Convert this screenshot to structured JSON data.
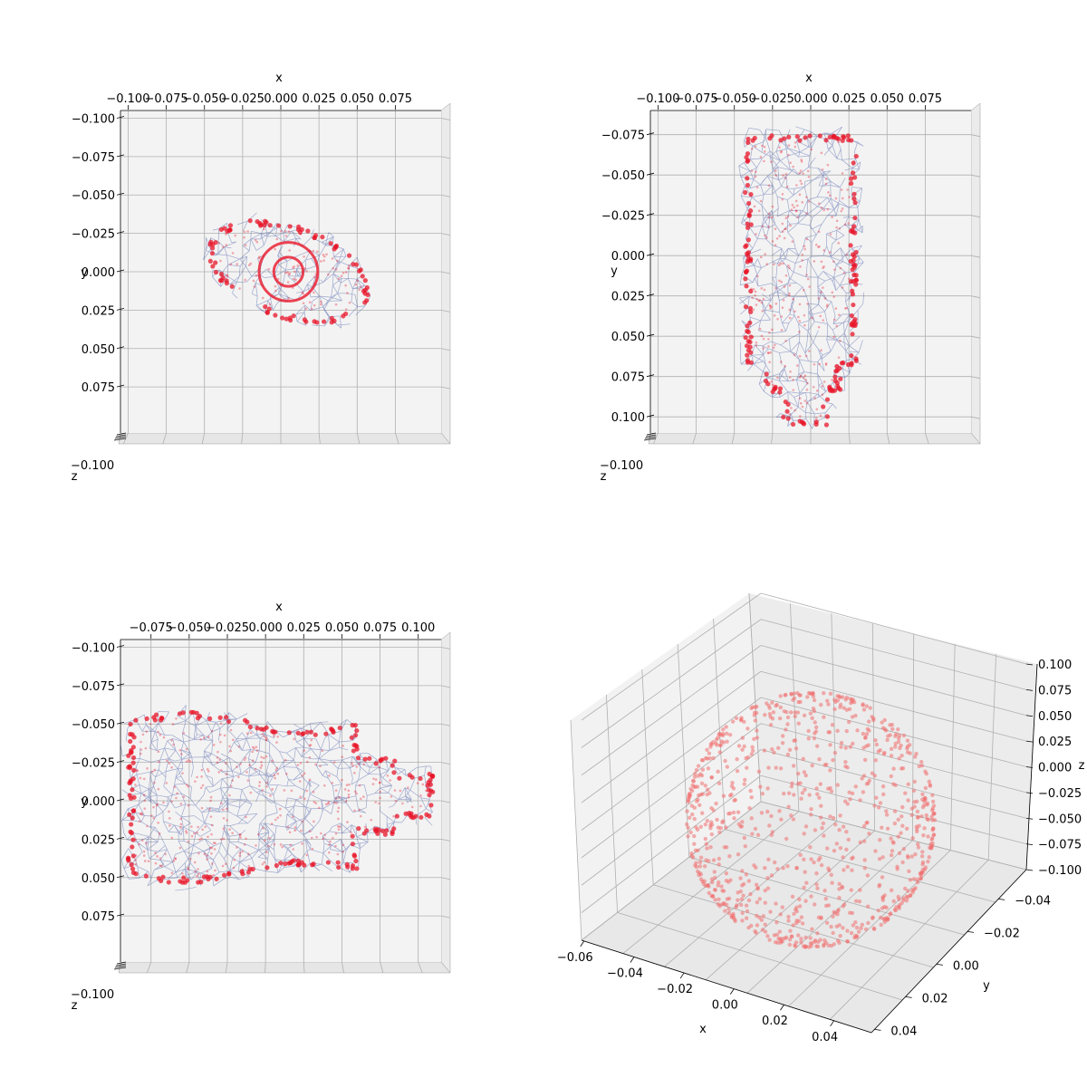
{
  "colors": {
    "mesh": "#3a4fa0",
    "points": "#e8162a",
    "scatter": "#f07070",
    "pane": "#f3f3f3",
    "grid": "#b0b0b0"
  },
  "chart_data": [
    {
      "type": "scatter",
      "view": "top (x-y)",
      "xlabel": "x",
      "ylabel": "y",
      "zlabel": "z",
      "x_ticks": [
        "−0.100",
        "−0.075",
        "−0.050",
        "−0.025",
        "0.000",
        "0.025",
        "0.050",
        "0.075"
      ],
      "y_ticks": [
        "−0.100",
        "−0.075",
        "−0.050",
        "−0.025",
        "0.000",
        "0.025",
        "0.050",
        "0.075"
      ],
      "z_ticks_overlapped": "−0.100",
      "xlim": [
        -0.105,
        0.105
      ],
      "ylim": [
        -0.105,
        0.105
      ],
      "grid": true,
      "shape": {
        "kind": "ellipse",
        "cx": 0.005,
        "cy": 0.0,
        "rx": 0.055,
        "ry": 0.03,
        "tilt_deg": -20
      },
      "series": [
        {
          "color": "mesh",
          "points_desc": "wireframe hull"
        },
        {
          "color": "points",
          "points_desc": "dense surface samples"
        }
      ]
    },
    {
      "type": "scatter",
      "view": "top (x-y)",
      "xlabel": "x",
      "ylabel": "y",
      "zlabel": "z",
      "x_ticks": [
        "−0.100",
        "−0.075",
        "−0.050",
        "−0.025",
        "0.000",
        "0.025",
        "0.050",
        "0.075"
      ],
      "y_ticks": [
        "−0.075",
        "−0.050",
        "−0.025",
        "0.000",
        "0.025",
        "0.050",
        "0.075",
        "0.100"
      ],
      "z_ticks_overlapped": "−0.100",
      "xlim": [
        -0.105,
        0.105
      ],
      "ylim": [
        -0.09,
        0.11
      ],
      "grid": true,
      "shape": {
        "kind": "bottle-vertical",
        "xmin": -0.045,
        "xmax": 0.03,
        "ymin": -0.075,
        "ymax": 0.105
      },
      "series": [
        {
          "color": "mesh",
          "points_desc": "wireframe hull"
        },
        {
          "color": "points",
          "points_desc": "dense surface samples"
        }
      ]
    },
    {
      "type": "scatter",
      "view": "top (x-y)",
      "xlabel": "x",
      "ylabel": "y",
      "zlabel": "z",
      "x_ticks": [
        "−0.075",
        "−0.050",
        "−0.025",
        "0.000",
        "0.025",
        "0.050",
        "0.075",
        "0.100"
      ],
      "y_ticks": [
        "−0.100",
        "−0.075",
        "−0.050",
        "−0.025",
        "0.000",
        "0.025",
        "0.050",
        "0.075"
      ],
      "z_ticks_overlapped": "−0.100",
      "xlim": [
        -0.095,
        0.115
      ],
      "ylim": [
        -0.105,
        0.105
      ],
      "grid": true,
      "shape": {
        "kind": "bottle-horizontal",
        "xmin": -0.09,
        "xmax": 0.11,
        "ymin": -0.055,
        "ymax": 0.05
      },
      "series": [
        {
          "color": "mesh",
          "points_desc": "wireframe hull"
        },
        {
          "color": "points",
          "points_desc": "dense surface samples"
        }
      ]
    },
    {
      "type": "scatter",
      "view": "3d perspective",
      "xlabel": "x",
      "ylabel": "y",
      "zlabel": "z",
      "x_ticks": [
        "−0.06",
        "−0.04",
        "−0.02",
        "0.00",
        "0.02",
        "0.04"
      ],
      "y_ticks": [
        "−0.04",
        "−0.02",
        "0.00",
        "0.02",
        "0.04"
      ],
      "z_ticks": [
        "−0.100",
        "−0.075",
        "−0.050",
        "−0.025",
        "0.000",
        "0.025",
        "0.050",
        "0.075",
        "0.100"
      ],
      "grid": true,
      "shape": {
        "kind": "sphere",
        "radius": 0.05
      },
      "series": [
        {
          "color": "scatter",
          "points_desc": "random points on sphere surface",
          "count": 900
        }
      ]
    }
  ]
}
